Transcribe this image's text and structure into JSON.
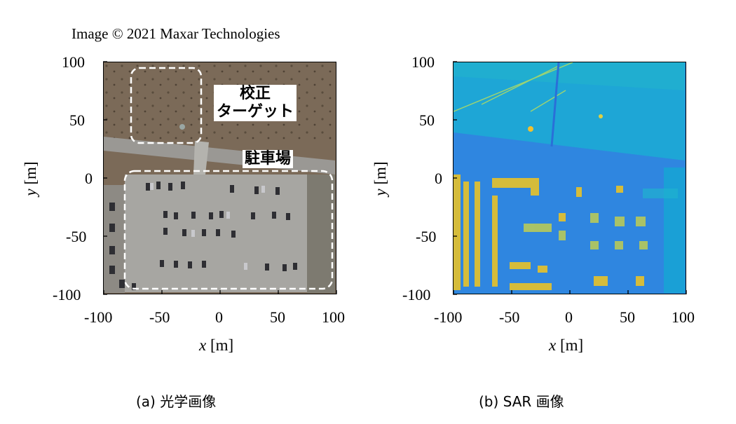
{
  "credit": "Image © 2021 Maxar Technologies",
  "panels": [
    {
      "caption": "(a) 光学画像",
      "xlabel_var": "x",
      "xlabel_unit": "[m]",
      "ylabel_var": "y",
      "ylabel_unit": "[m]",
      "xticks": [
        "-100",
        "-50",
        "0",
        "50",
        "100"
      ],
      "yticks": [
        "100",
        "50",
        "0",
        "-50",
        "-100"
      ],
      "annotations": {
        "calibration": [
          "校正",
          "ターゲット"
        ],
        "parking": "駐車場"
      }
    },
    {
      "caption": "(b) SAR 画像",
      "xlabel_var": "x",
      "xlabel_unit": "[m]",
      "ylabel_var": "y",
      "ylabel_unit": "[m]",
      "xticks": [
        "-100",
        "-50",
        "0",
        "50",
        "100"
      ],
      "yticks": [
        "100",
        "50",
        "0",
        "-50",
        "-100"
      ]
    }
  ],
  "colors": {
    "sar_background": "#2a8be0",
    "sar_field": "#1fa9d8",
    "sar_bright": "#e6c12a",
    "optical_ground": "#7b6b5a",
    "optical_pavement": "#a9a9a6"
  }
}
